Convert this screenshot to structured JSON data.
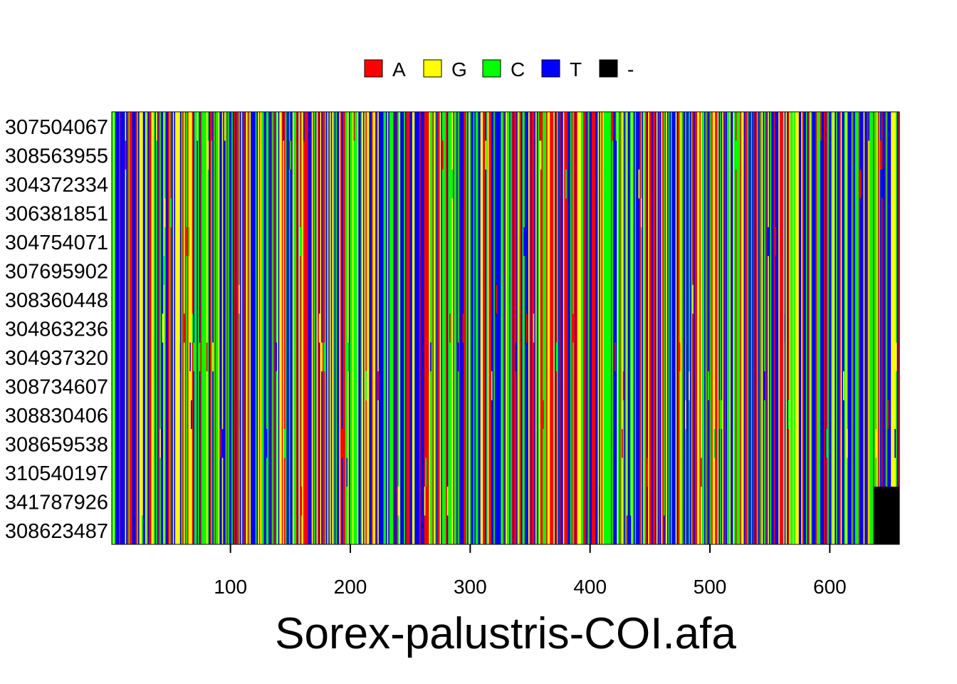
{
  "chart_data": {
    "type": "heatmap",
    "title": "Sorex-palustris-COI.afa",
    "xlabel": "Sorex-palustris-COI.afa",
    "ylabel": "",
    "xlim": [
      1,
      658
    ],
    "x_ticks": [
      "100",
      "200",
      "300",
      "400",
      "500",
      "600"
    ],
    "legend": {
      "position": "top",
      "entries": [
        {
          "label": "A",
          "color": "#ff0000"
        },
        {
          "label": "G",
          "color": "#ffff00"
        },
        {
          "label": "C",
          "color": "#00ff00"
        },
        {
          "label": "T",
          "color": "#0000ff"
        },
        {
          "label": "-",
          "color": "#000000"
        }
      ]
    },
    "rows": [
      "307504067",
      "308563955",
      "304372334",
      "306381851",
      "304754071",
      "307695902",
      "308360448",
      "304863236",
      "304937320",
      "308734607",
      "308830406",
      "308659538",
      "310540197",
      "341787926",
      "308623487"
    ],
    "alignment_length": 658,
    "gap_region": {
      "rows": [
        "341787926",
        "308623487"
      ],
      "columns": [
        638,
        658
      ]
    }
  }
}
